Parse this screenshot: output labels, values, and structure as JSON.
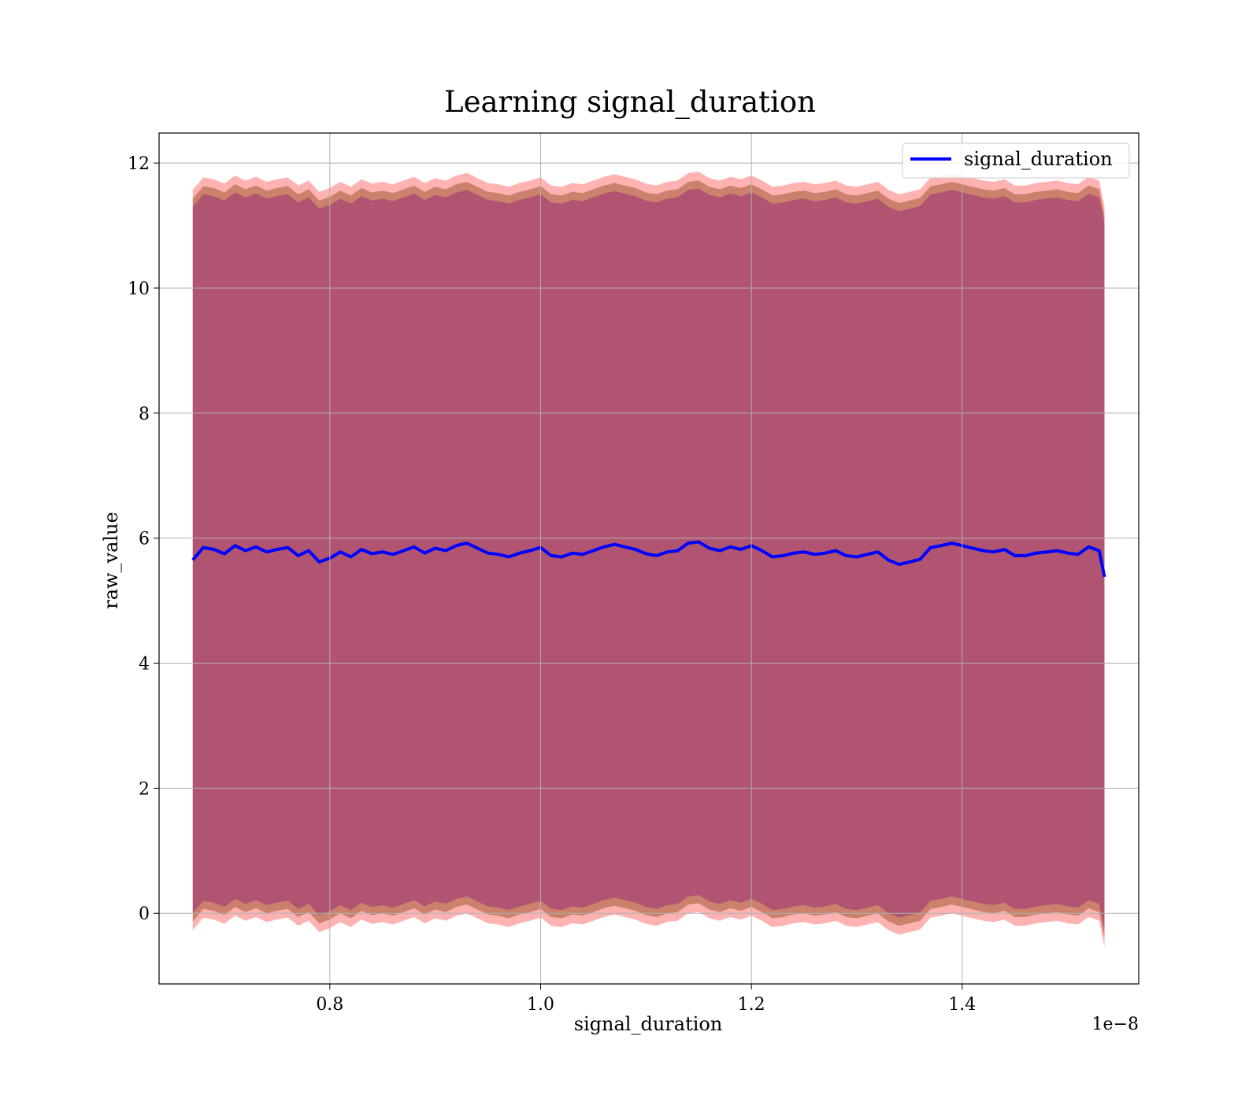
{
  "chart_data": {
    "type": "area",
    "title": "Learning signal_duration",
    "xlabel": "signal_duration",
    "ylabel": "raw_value",
    "x_offset_label": "1e−8",
    "xlim": [
      6.38e-09,
      1.5675e-08
    ],
    "ylim": [
      -1.13,
      12.48
    ],
    "xticks": [
      8e-09,
      1e-08,
      1.2e-08,
      1.4e-08
    ],
    "xtick_labels": [
      "0.8",
      "1.0",
      "1.2",
      "1.4"
    ],
    "yticks": [
      0,
      2,
      4,
      6,
      8,
      10,
      12
    ],
    "ytick_labels": [
      "0",
      "2",
      "4",
      "6",
      "8",
      "10",
      "12"
    ],
    "grid": true,
    "legend": {
      "position": "top-right",
      "entries": [
        "signal_duration"
      ]
    },
    "colors": {
      "line": "#0000ff",
      "band_outer": "#ff7f7f",
      "band_inner": "#8b4513",
      "band_core": "#800080"
    },
    "series": [
      {
        "name": "signal_duration",
        "x": [
          6.7e-09,
          6.8e-09,
          6.9e-09,
          7e-09,
          7.1e-09,
          7.2e-09,
          7.3e-09,
          7.4e-09,
          7.5e-09,
          7.6e-09,
          7.7e-09,
          7.8e-09,
          7.9e-09,
          8e-09,
          8.1e-09,
          8.2e-09,
          8.3e-09,
          8.4e-09,
          8.5e-09,
          8.6e-09,
          8.7e-09,
          8.8e-09,
          8.9e-09,
          9e-09,
          9.1e-09,
          9.2e-09,
          9.3e-09,
          9.4e-09,
          9.5e-09,
          9.6e-09,
          9.7e-09,
          9.8e-09,
          9.9e-09,
          1e-08,
          1.01e-08,
          1.02e-08,
          1.03e-08,
          1.04e-08,
          1.05e-08,
          1.06e-08,
          1.07e-08,
          1.08e-08,
          1.09e-08,
          1.1e-08,
          1.11e-08,
          1.12e-08,
          1.13e-08,
          1.14e-08,
          1.15e-08,
          1.16e-08,
          1.17e-08,
          1.18e-08,
          1.19e-08,
          1.2e-08,
          1.21e-08,
          1.22e-08,
          1.23e-08,
          1.24e-08,
          1.25e-08,
          1.26e-08,
          1.27e-08,
          1.28e-08,
          1.29e-08,
          1.3e-08,
          1.31e-08,
          1.32e-08,
          1.33e-08,
          1.34e-08,
          1.35e-08,
          1.36e-08,
          1.37e-08,
          1.38e-08,
          1.39e-08,
          1.4e-08,
          1.41e-08,
          1.42e-08,
          1.43e-08,
          1.44e-08,
          1.45e-08,
          1.46e-08,
          1.47e-08,
          1.48e-08,
          1.49e-08,
          1.5e-08,
          1.51e-08,
          1.52e-08,
          1.53e-08,
          1.535e-08
        ],
        "y": [
          5.65,
          5.85,
          5.82,
          5.75,
          5.88,
          5.8,
          5.86,
          5.78,
          5.82,
          5.85,
          5.72,
          5.8,
          5.62,
          5.68,
          5.78,
          5.7,
          5.82,
          5.75,
          5.78,
          5.74,
          5.8,
          5.86,
          5.76,
          5.84,
          5.8,
          5.88,
          5.92,
          5.84,
          5.76,
          5.74,
          5.7,
          5.76,
          5.8,
          5.85,
          5.72,
          5.7,
          5.76,
          5.74,
          5.8,
          5.86,
          5.9,
          5.86,
          5.82,
          5.75,
          5.72,
          5.78,
          5.8,
          5.92,
          5.94,
          5.84,
          5.8,
          5.86,
          5.82,
          5.88,
          5.8,
          5.7,
          5.72,
          5.76,
          5.78,
          5.74,
          5.76,
          5.8,
          5.72,
          5.7,
          5.74,
          5.78,
          5.65,
          5.58,
          5.62,
          5.66,
          5.85,
          5.88,
          5.92,
          5.88,
          5.84,
          5.8,
          5.78,
          5.82,
          5.72,
          5.72,
          5.76,
          5.78,
          5.8,
          5.76,
          5.74,
          5.86,
          5.8,
          5.38
        ],
        "band_offsets": {
          "core": 5.65,
          "inner": 5.78,
          "outer": 5.92
        }
      }
    ]
  }
}
